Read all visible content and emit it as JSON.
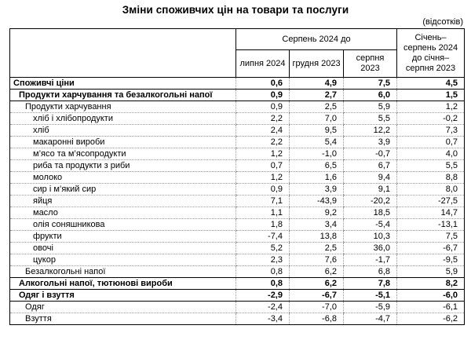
{
  "title": "Зміни споживчих цін на товари та послуги",
  "unit_note": "(відсотків)",
  "table": {
    "col_group_header": "Серпень 2024 до",
    "sub_headers": [
      "липня 2024",
      "грудня 2023",
      "серпня 2023"
    ],
    "last_col_header": "Січень–серпень 2024 до січня–серпня 2023",
    "rows": [
      {
        "label": "Споживчі ціни",
        "values": [
          "0,6",
          "4,9",
          "7,5",
          "4,5"
        ],
        "level": 0,
        "bold": true
      },
      {
        "label": "Продукти харчування та безалкогольні напої",
        "values": [
          "0,9",
          "2,7",
          "6,0",
          "1,5"
        ],
        "level": 1,
        "bold": true
      },
      {
        "label": "Продукти харчування",
        "values": [
          "0,9",
          "2,5",
          "5,9",
          "1,2"
        ],
        "level": 2,
        "bold": false
      },
      {
        "label": "хліб і хлібопродукти",
        "values": [
          "2,2",
          "7,0",
          "5,5",
          "-0,2"
        ],
        "level": 3,
        "bold": false
      },
      {
        "label": "хліб",
        "values": [
          "2,4",
          "9,5",
          "12,2",
          "7,3"
        ],
        "level": 3,
        "bold": false
      },
      {
        "label": "макаронні вироби",
        "values": [
          "2,2",
          "5,4",
          "3,9",
          "0,7"
        ],
        "level": 3,
        "bold": false
      },
      {
        "label": "м’ясо та м’ясопродукти",
        "values": [
          "1,2",
          "-1,0",
          "-0,7",
          "4,0"
        ],
        "level": 3,
        "bold": false
      },
      {
        "label": "риба та продукти з риби",
        "values": [
          "0,7",
          "6,5",
          "6,7",
          "5,5"
        ],
        "level": 3,
        "bold": false
      },
      {
        "label": "молоко",
        "values": [
          "1,2",
          "1,6",
          "9,4",
          "8,8"
        ],
        "level": 3,
        "bold": false
      },
      {
        "label": "сир і м’який сир",
        "values": [
          "0,9",
          "3,9",
          "9,1",
          "8,0"
        ],
        "level": 3,
        "bold": false
      },
      {
        "label": "яйця",
        "values": [
          "7,1",
          "-43,9",
          "-20,2",
          "-27,5"
        ],
        "level": 3,
        "bold": false
      },
      {
        "label": "масло",
        "values": [
          "1,1",
          "9,2",
          "18,5",
          "14,7"
        ],
        "level": 3,
        "bold": false
      },
      {
        "label": "олія соняшникова",
        "values": [
          "1,8",
          "3,4",
          "-5,4",
          "-13,1"
        ],
        "level": 3,
        "bold": false
      },
      {
        "label": "фрукти",
        "values": [
          "-7,4",
          "13,8",
          "10,3",
          "7,5"
        ],
        "level": 3,
        "bold": false
      },
      {
        "label": "овочі",
        "values": [
          "5,2",
          "2,5",
          "36,0",
          "-6,7"
        ],
        "level": 3,
        "bold": false
      },
      {
        "label": "цукор",
        "values": [
          "2,3",
          "7,6",
          "-1,7",
          "-9,5"
        ],
        "level": 3,
        "bold": false
      },
      {
        "label": "Безалкогольні напої",
        "values": [
          "0,8",
          "6,2",
          "6,8",
          "5,9"
        ],
        "level": 2,
        "bold": false
      },
      {
        "label": "Алкогольні напої, тютюнові вироби",
        "values": [
          "0,8",
          "6,2",
          "7,8",
          "8,2"
        ],
        "level": 1,
        "bold": true
      },
      {
        "label": "Одяг і взуття",
        "values": [
          "-2,9",
          "-6,7",
          "-5,1",
          "-6,0"
        ],
        "level": 1,
        "bold": true
      },
      {
        "label": "Одяг",
        "values": [
          "-2,4",
          "-7,0",
          "-5,9",
          "-6,1"
        ],
        "level": 2,
        "bold": false
      },
      {
        "label": "Взуття",
        "values": [
          "-3,4",
          "-6,8",
          "-4,7",
          "-6,2"
        ],
        "level": 2,
        "bold": false
      }
    ]
  }
}
